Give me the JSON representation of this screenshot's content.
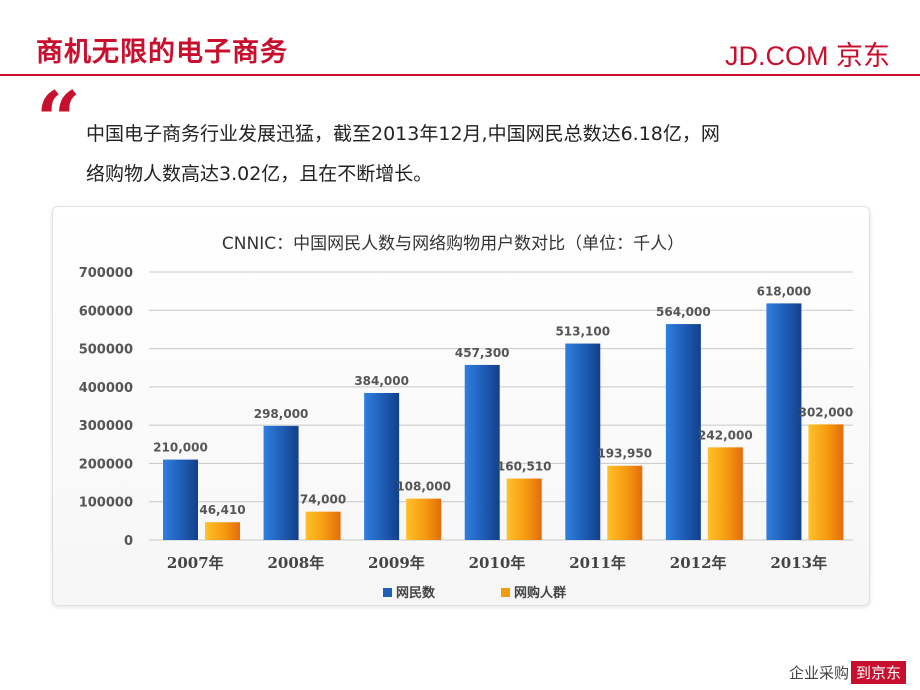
{
  "header": {
    "title": "商机无限的电子商务",
    "logo_text": "JD.COM 京东"
  },
  "quote": {
    "mark": "“",
    "line1": "中国电子商务行业发展迅猛，截至2013年12月,中国网民总数达6.18亿，网",
    "line2": "络购物人数高达3.02亿，且在不断增长。"
  },
  "footer": {
    "prefix": "企业采购",
    "badge": "到京东"
  },
  "colors": {
    "brand": "#c8102e",
    "series_1": "#1f5fb8",
    "series_2": "#f29a12"
  },
  "chart_data": {
    "type": "bar",
    "title": "CNNIC：中国网民人数与网络购物用户数对比（单位：千人）",
    "categories": [
      "2007年",
      "2008年",
      "2009年",
      "2010年",
      "2011年",
      "2012年",
      "2013年"
    ],
    "series": [
      {
        "name": "网民数",
        "values": [
          210000,
          298000,
          384000,
          457300,
          513100,
          564000,
          618000
        ],
        "labels": [
          "210,000",
          "298,000",
          "384,000",
          "457,300",
          "513,100",
          "564,000",
          "618,000"
        ]
      },
      {
        "name": "网购人群",
        "values": [
          46410,
          74000,
          108000,
          160510,
          193950,
          242000,
          302000
        ],
        "labels": [
          "46,410",
          "74,000",
          "108,000",
          "160,510",
          "193,950",
          "242,000",
          "302,000"
        ]
      }
    ],
    "yticks": [
      "0",
      "100000",
      "200000",
      "300000",
      "400000",
      "500000",
      "600000",
      "700000"
    ],
    "ylim": [
      0,
      700000
    ],
    "grid": true,
    "legend_position": "bottom"
  }
}
